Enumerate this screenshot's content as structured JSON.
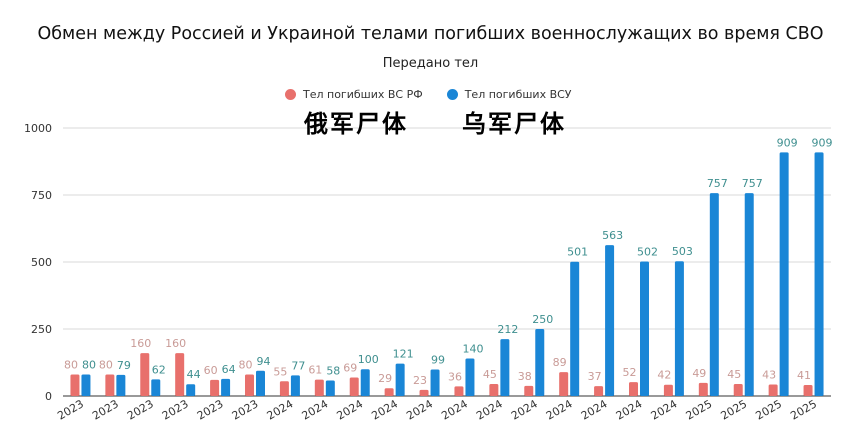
{
  "chart_data": {
    "type": "bar",
    "title": "Обмен между Россией и Украиной телами погибших военнослужащих во время СВО",
    "subtitle": "Передано тел",
    "overlay_left": "俄军尸体",
    "overlay_right": "乌军尸体",
    "categories": [
      "2023",
      "2023",
      "2023",
      "2023",
      "2023",
      "2023",
      "2024",
      "2024",
      "2024",
      "2024",
      "2024",
      "2024",
      "2024",
      "2024",
      "2024",
      "2024",
      "2024",
      "2024",
      "2025",
      "2025",
      "2025",
      "2025"
    ],
    "series": [
      {
        "name": "Тел погибших ВС  РФ",
        "color": "#e8706c",
        "label_color": "#c99b97",
        "values": [
          80,
          80,
          160,
          160,
          60,
          80,
          55,
          61,
          69,
          29,
          23,
          36,
          45,
          38,
          89,
          37,
          52,
          42,
          49,
          45,
          43,
          41
        ]
      },
      {
        "name": "Тел погибших ВСУ",
        "color": "#1a86d6",
        "label_color": "#3f8f8f",
        "values": [
          80,
          79,
          62,
          44,
          64,
          94,
          77,
          58,
          100,
          121,
          99,
          140,
          212,
          250,
          501,
          563,
          502,
          503,
          757,
          757,
          909,
          909
        ]
      }
    ],
    "y_ticks": [
      0,
      250,
      500,
      750,
      1000
    ],
    "ylim": [
      0,
      1000
    ],
    "grid": true,
    "legend_position": "top-center"
  }
}
